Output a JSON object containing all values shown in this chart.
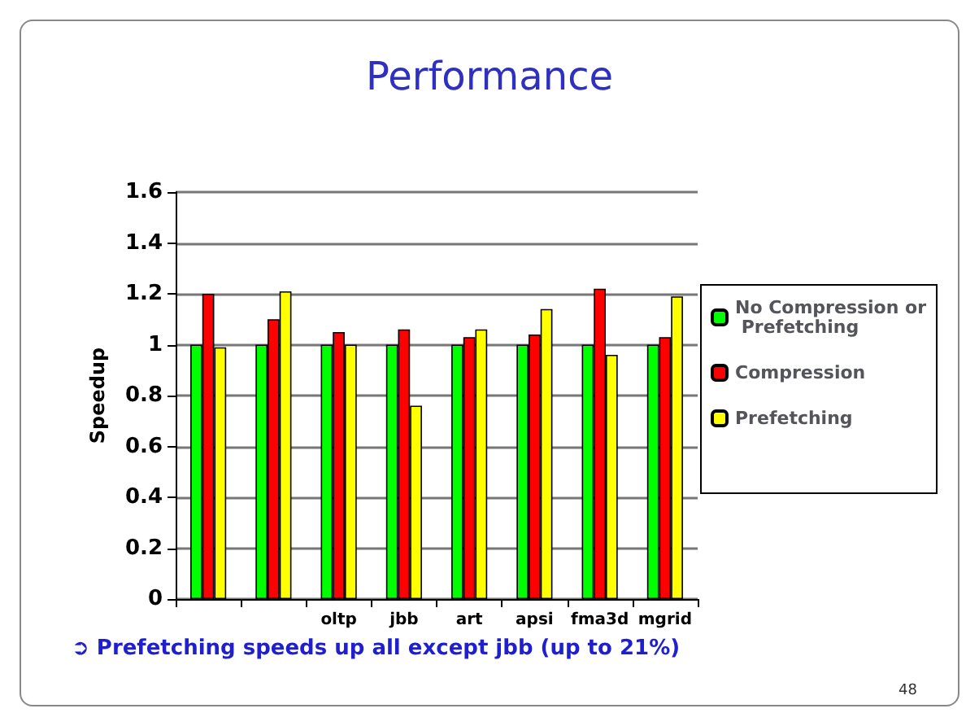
{
  "chart_data": {
    "type": "bar",
    "title": "Performance",
    "ylabel": "Speedup",
    "categories": [
      null,
      null,
      "oltp",
      "jbb",
      "art",
      "apsi",
      "fma3d",
      "mgrid"
    ],
    "series": [
      {
        "name": "No Compression or Prefetching",
        "color": "#00ff00",
        "values": [
          1,
          1,
          1,
          1,
          1,
          1,
          1,
          1
        ]
      },
      {
        "name": "Compression",
        "color": "#ff0000",
        "values": [
          1.2,
          1.1,
          1.05,
          1.06,
          1.03,
          1.04,
          1.22,
          1.03
        ]
      },
      {
        "name": "Prefetching",
        "color": "#ffff00",
        "values": [
          0.99,
          1.21,
          1.0,
          0.76,
          1.06,
          1.14,
          0.96,
          1.19
        ]
      }
    ],
    "ylim": [
      0,
      1.6
    ],
    "yticks": [
      0,
      0.2,
      0.4,
      0.6,
      0.8,
      1,
      1.2,
      1.4,
      1.6
    ],
    "grid": "y",
    "legend": "right",
    "annotations": [
      "➲ Prefetching speeds up all except jbb (up to 21%)",
      "48"
    ]
  }
}
